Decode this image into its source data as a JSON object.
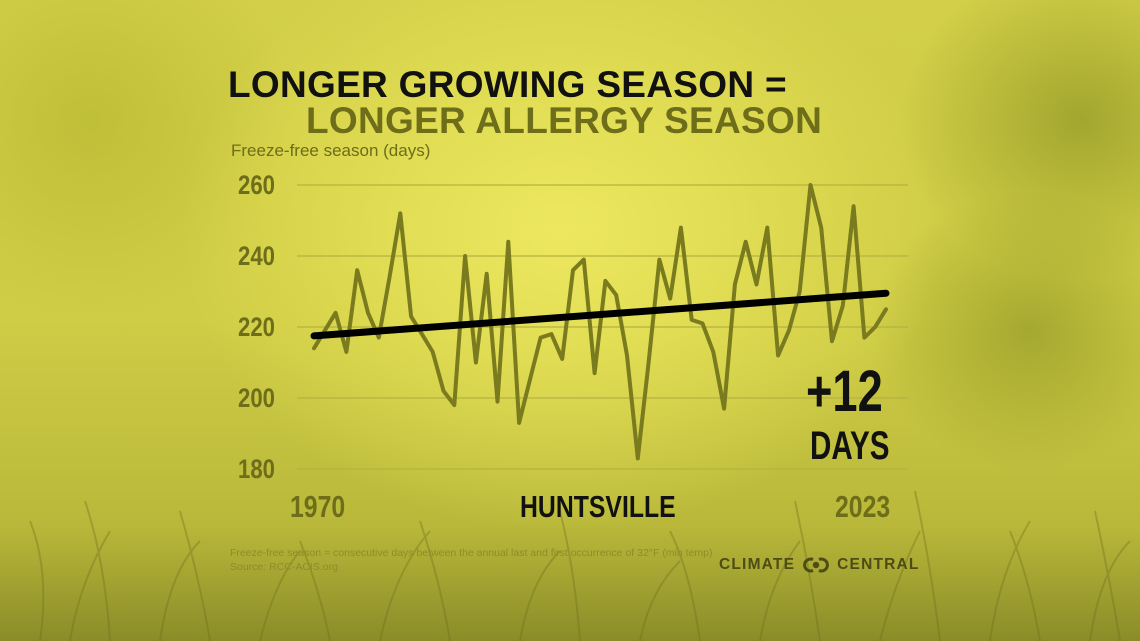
{
  "title": {
    "line1": "LONGER GROWING SEASON =",
    "line2": "LONGER ALLERGY SEASON"
  },
  "axis": {
    "ylabel": "Freeze-free season (days)",
    "yticks": [
      "260",
      "240",
      "220",
      "200",
      "180"
    ],
    "x_start": "1970",
    "x_end": "2023"
  },
  "location": "HUNTSVILLE",
  "callout": {
    "value": "+12",
    "unit": "DAYS"
  },
  "footnote": {
    "definition": "Freeze-free season = consecutive days between the annual last and first occurrence of 32°F (min temp)",
    "source": "Source: RCC-ACIS.org"
  },
  "brand": {
    "left": "CLIMATE",
    "right": "CENTRAL",
    "icon": "climate-central-logo-icon"
  },
  "colors": {
    "series": "#7a7a1e",
    "trend": "#000000",
    "grid": "#b5b240",
    "accent_text": "#6d6d1a"
  },
  "chart_data": {
    "type": "line",
    "title": "LONGER GROWING SEASON = LONGER ALLERGY SEASON",
    "subtitle": "HUNTSVILLE",
    "xlabel": "",
    "ylabel": "Freeze-free season (days)",
    "ylim": [
      180,
      260
    ],
    "xlim": [
      1970,
      2023
    ],
    "yticks": [
      180,
      200,
      220,
      240,
      260
    ],
    "xticks": [
      1970,
      2023
    ],
    "grid": true,
    "legend": null,
    "x": [
      1970,
      1971,
      1972,
      1973,
      1974,
      1975,
      1976,
      1977,
      1978,
      1979,
      1980,
      1981,
      1982,
      1983,
      1984,
      1985,
      1986,
      1987,
      1988,
      1989,
      1990,
      1991,
      1992,
      1993,
      1994,
      1995,
      1996,
      1997,
      1998,
      1999,
      2000,
      2001,
      2002,
      2003,
      2004,
      2005,
      2006,
      2007,
      2008,
      2009,
      2010,
      2011,
      2012,
      2013,
      2014,
      2015,
      2016,
      2017,
      2018,
      2019,
      2020,
      2021,
      2022,
      2023
    ],
    "series": [
      {
        "name": "Freeze-free season (days)",
        "values": [
          214,
          219,
          224,
          213,
          236,
          224,
          217,
          234,
          252,
          223,
          218,
          213,
          202,
          198,
          240,
          210,
          235,
          199,
          244,
          193,
          205,
          217,
          218,
          211,
          236,
          239,
          207,
          233,
          229,
          212,
          183,
          210,
          239,
          228,
          248,
          222,
          221,
          213,
          197,
          232,
          244,
          232,
          248,
          212,
          219,
          230,
          260,
          248,
          216,
          226,
          254,
          217,
          220,
          225
        ]
      },
      {
        "name": "Trend",
        "values_endpoints": {
          "1970": 217.5,
          "2023": 229.5
        }
      }
    ],
    "annotations": [
      "+12 DAYS"
    ]
  }
}
